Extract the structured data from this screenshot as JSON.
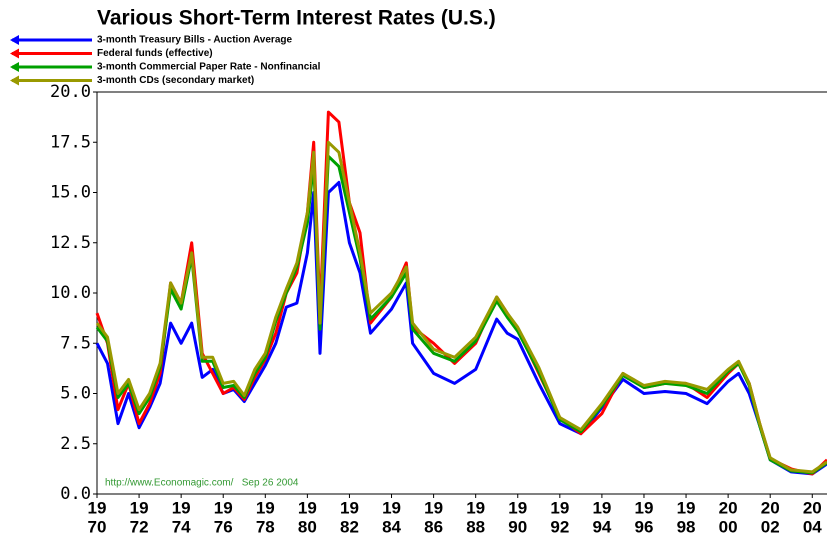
{
  "chart_data": {
    "type": "line",
    "title": "Various Short-Term Interest Rates (U.S.)",
    "annotation": "http://www.Economagic.com/   Sep 26 2004",
    "x": [
      1970,
      1970.5,
      1971,
      1971.5,
      1972,
      1972.5,
      1973,
      1973.5,
      1974,
      1974.5,
      1975,
      1975.5,
      1976,
      1976.5,
      1977,
      1977.5,
      1978,
      1978.5,
      1979,
      1979.5,
      1980,
      1980.3,
      1980.6,
      1981,
      1981.5,
      1982,
      1982.5,
      1983,
      1984,
      1984.7,
      1985,
      1986,
      1987,
      1988,
      1989,
      1989.5,
      1990,
      1991,
      1992,
      1993,
      1994,
      1995,
      1996,
      1997,
      1998,
      1999,
      2000,
      2000.5,
      2001,
      2001.5,
      2002,
      2003,
      2004,
      2004.7
    ],
    "series": [
      {
        "name": "3-month Treasury Bills - Auction Average",
        "color": "#0000ff",
        "values": [
          7.5,
          6.5,
          3.5,
          5.0,
          3.3,
          4.3,
          5.5,
          8.5,
          7.5,
          8.5,
          5.8,
          6.2,
          5.0,
          5.2,
          4.6,
          5.5,
          6.4,
          7.5,
          9.3,
          9.5,
          12.0,
          15.0,
          7.0,
          15.0,
          15.5,
          12.5,
          11.0,
          8.0,
          9.2,
          10.5,
          7.5,
          6.0,
          5.5,
          6.2,
          8.7,
          8.0,
          7.7,
          5.5,
          3.5,
          3.0,
          4.3,
          5.7,
          5.0,
          5.1,
          5.0,
          4.5,
          5.6,
          6.0,
          5.0,
          3.4,
          1.7,
          1.1,
          1.0,
          1.5
        ]
      },
      {
        "name": "Federal funds (effective)",
        "color": "#ff0000",
        "values": [
          9.0,
          7.5,
          4.2,
          5.5,
          3.5,
          4.5,
          6.0,
          10.5,
          9.5,
          12.5,
          7.0,
          6.0,
          5.0,
          5.3,
          4.7,
          5.8,
          6.7,
          8.0,
          10.0,
          11.0,
          14.0,
          17.5,
          9.0,
          19.0,
          18.5,
          14.5,
          13.0,
          8.5,
          9.8,
          11.5,
          8.3,
          7.5,
          6.5,
          7.5,
          9.8,
          9.0,
          8.2,
          6.0,
          3.8,
          3.0,
          4.0,
          6.0,
          5.3,
          5.5,
          5.5,
          4.8,
          6.0,
          6.5,
          5.5,
          3.5,
          1.75,
          1.25,
          1.0,
          1.7
        ]
      },
      {
        "name": "3-month Commercial Paper Rate - Nonfinancial",
        "color": "#00a000",
        "values": [
          8.3,
          7.6,
          4.8,
          5.5,
          4.0,
          4.8,
          6.3,
          10.2,
          9.2,
          11.8,
          6.6,
          6.6,
          5.3,
          5.4,
          4.8,
          6.0,
          6.8,
          8.6,
          10.0,
          11.3,
          13.5,
          16.5,
          8.2,
          16.8,
          16.3,
          14.0,
          11.7,
          8.7,
          9.8,
          11.0,
          8.2,
          7.0,
          6.6,
          7.6,
          9.6,
          8.8,
          8.1,
          6.1,
          3.7,
          3.1,
          4.4,
          5.9,
          5.3,
          5.5,
          5.4,
          5.0,
          6.1,
          6.5,
          5.4,
          3.4,
          1.7,
          1.15,
          1.05,
          1.55
        ]
      },
      {
        "name": "3-month CDs (secondary market)",
        "color": "#999900",
        "values": [
          8.5,
          7.8,
          5.0,
          5.7,
          4.2,
          5.0,
          6.5,
          10.5,
          9.5,
          12.0,
          6.8,
          6.8,
          5.5,
          5.6,
          4.9,
          6.2,
          7.0,
          8.8,
          10.2,
          11.5,
          14.0,
          17.0,
          8.5,
          17.5,
          17.0,
          14.5,
          12.0,
          9.0,
          10.0,
          11.3,
          8.5,
          7.2,
          6.8,
          7.8,
          9.8,
          9.0,
          8.3,
          6.3,
          3.8,
          3.2,
          4.5,
          6.0,
          5.4,
          5.6,
          5.5,
          5.2,
          6.2,
          6.6,
          5.5,
          3.5,
          1.8,
          1.2,
          1.1,
          1.6
        ]
      }
    ],
    "xlim": [
      1970,
      2004.7
    ],
    "ylim": [
      0,
      20
    ],
    "yticks": [
      {
        "value": 0,
        "label": "0.0"
      },
      2.5,
      {
        "value": 5,
        "label": "5.0"
      },
      7.5,
      {
        "value": 10,
        "label": "10.0"
      },
      12.5,
      {
        "value": 15,
        "label": "15.0"
      },
      17.5,
      {
        "value": 20,
        "label": "20.0"
      }
    ],
    "xticks": [
      {
        "value": 1970,
        "label": [
          "19",
          "70"
        ]
      },
      {
        "value": 1972,
        "label": [
          "19",
          "72"
        ]
      },
      {
        "value": 1974,
        "label": [
          "19",
          "74"
        ]
      },
      {
        "value": 1976,
        "label": [
          "19",
          "76"
        ]
      },
      {
        "value": 1978,
        "label": [
          "19",
          "78"
        ]
      },
      {
        "value": 1980,
        "label": [
          "19",
          "80"
        ]
      },
      {
        "value": 1982,
        "label": [
          "19",
          "82"
        ]
      },
      {
        "value": 1984,
        "label": [
          "19",
          "84"
        ]
      },
      {
        "value": 1986,
        "label": [
          "19",
          "86"
        ]
      },
      {
        "value": 1988,
        "label": [
          "19",
          "88"
        ]
      },
      {
        "value": 1990,
        "label": [
          "19",
          "90"
        ]
      },
      {
        "value": 1992,
        "label": [
          "19",
          "92"
        ]
      },
      {
        "value": 1994,
        "label": [
          "19",
          "94"
        ]
      },
      {
        "value": 1996,
        "label": [
          "19",
          "96"
        ]
      },
      {
        "value": 1998,
        "label": [
          "19",
          "98"
        ]
      },
      {
        "value": 2000,
        "label": [
          "20",
          "00"
        ]
      },
      {
        "value": 2002,
        "label": [
          "20",
          "02"
        ]
      },
      {
        "value": 2004,
        "label": [
          "20",
          "04"
        ]
      }
    ],
    "annotation_color": "#339933"
  }
}
